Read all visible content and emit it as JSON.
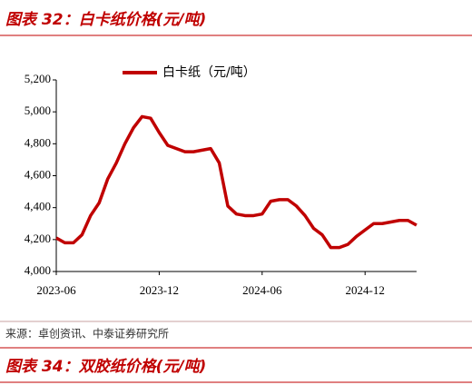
{
  "header": {
    "title": "图表 32：白卡纸价格(元/吨)"
  },
  "chart_data": {
    "type": "line",
    "categories": [
      "2023-06",
      null,
      null,
      null,
      null,
      null,
      null,
      null,
      null,
      null,
      null,
      null,
      "2023-12",
      null,
      null,
      null,
      null,
      null,
      null,
      null,
      null,
      null,
      null,
      null,
      "2024-06",
      null,
      null,
      null,
      null,
      null,
      null,
      null,
      null,
      null,
      null,
      null,
      "2024-12",
      null,
      null,
      null,
      null,
      null,
      null
    ],
    "series": [
      {
        "name": "白卡纸（元/吨）",
        "color": "#c00000",
        "values": [
          4210,
          4180,
          4180,
          4230,
          4350,
          4430,
          4580,
          4680,
          4800,
          4900,
          4970,
          4960,
          4870,
          4790,
          4770,
          4750,
          4750,
          4760,
          4770,
          4680,
          4410,
          4360,
          4350,
          4350,
          4360,
          4440,
          4450,
          4450,
          4410,
          4350,
          4270,
          4230,
          4150,
          4150,
          4170,
          4220,
          4260,
          4300,
          4300,
          4310,
          4320,
          4320,
          4290
        ]
      }
    ],
    "ylim": [
      4000,
      5200
    ],
    "yticks": [
      {
        "value": 4000,
        "label": "4,000"
      },
      {
        "value": 4200,
        "label": "4,200"
      },
      {
        "value": 4400,
        "label": "4,400"
      },
      {
        "value": 4600,
        "label": "4,600"
      },
      {
        "value": 4800,
        "label": "4,800"
      },
      {
        "value": 5000,
        "label": "5,000"
      },
      {
        "value": 5200,
        "label": "5,200"
      }
    ],
    "legend": "top"
  },
  "source": "来源：卓创资讯、中泰证券研究所",
  "next_header": {
    "title": "图表 34：双胶纸价格(元/吨)"
  }
}
